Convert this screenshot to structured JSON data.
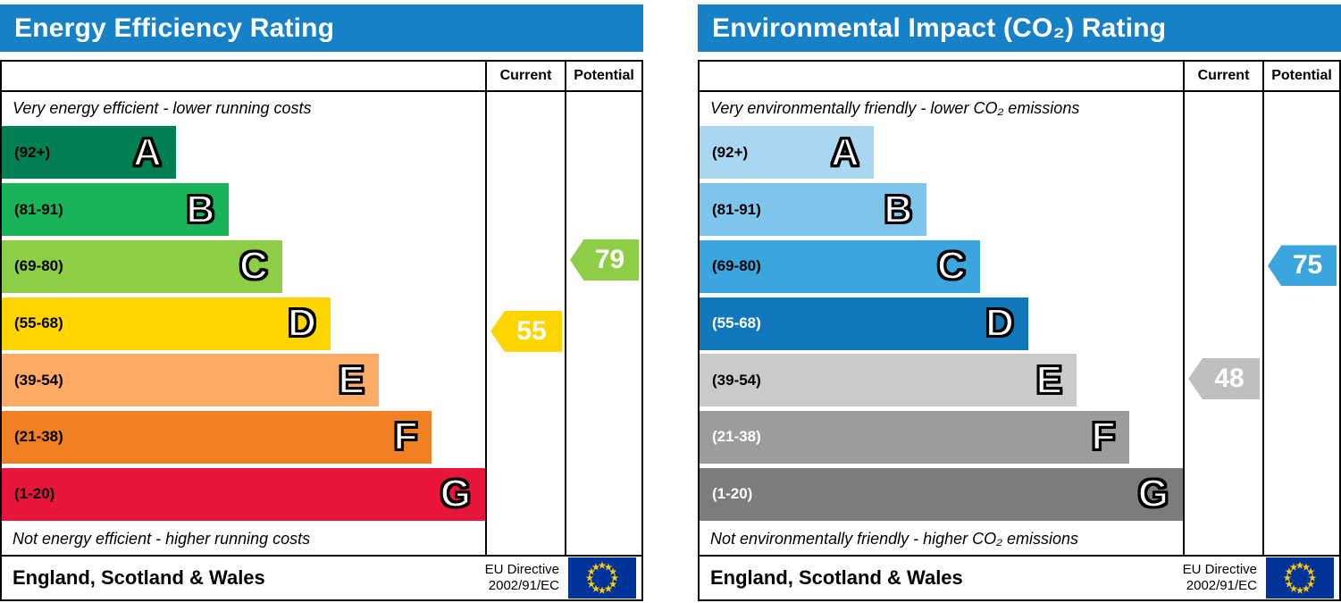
{
  "theme": {
    "header_bg": "#1681c7",
    "border_color": "#000000",
    "flag_bg": "#003399",
    "flag_star": "#ffcc00"
  },
  "chart_data": [
    {
      "type": "bar",
      "title": "Energy Efficiency Rating",
      "columns": {
        "current": "Current",
        "potential": "Potential"
      },
      "top_note": "Very energy efficient - lower running costs",
      "bottom_note": "Not energy efficient - higher running costs",
      "bands": [
        {
          "letter": "A",
          "range": "(92+)",
          "min": 92,
          "max": 100,
          "color": "#008054",
          "width_pct": 36,
          "label_color": "#000000"
        },
        {
          "letter": "B",
          "range": "(81-91)",
          "min": 81,
          "max": 91,
          "color": "#19b459",
          "width_pct": 47,
          "label_color": "#000000"
        },
        {
          "letter": "C",
          "range": "(69-80)",
          "min": 69,
          "max": 80,
          "color": "#8dce46",
          "width_pct": 58,
          "label_color": "#000000"
        },
        {
          "letter": "D",
          "range": "(55-68)",
          "min": 55,
          "max": 68,
          "color": "#ffd500",
          "width_pct": 68,
          "label_color": "#000000"
        },
        {
          "letter": "E",
          "range": "(39-54)",
          "min": 39,
          "max": 54,
          "color": "#fcaa65",
          "width_pct": 78,
          "label_color": "#000000"
        },
        {
          "letter": "F",
          "range": "(21-38)",
          "min": 21,
          "max": 38,
          "color": "#ef8023",
          "width_pct": 89,
          "label_color": "#000000"
        },
        {
          "letter": "G",
          "range": "(1-20)",
          "min": 1,
          "max": 20,
          "color": "#e9153b",
          "width_pct": 100,
          "label_color": "#000000"
        }
      ],
      "current": {
        "value": 55,
        "band": "D",
        "band_index": 3,
        "color": "#ffd500"
      },
      "potential": {
        "value": 79,
        "band": "C",
        "band_index": 2,
        "color": "#8dce46"
      },
      "footer": {
        "region": "England, Scotland & Wales",
        "directive_line1": "EU Directive",
        "directive_line2": "2002/91/EC"
      }
    },
    {
      "type": "bar",
      "title": "Environmental Impact (CO₂) Rating",
      "columns": {
        "current": "Current",
        "potential": "Potential"
      },
      "top_note": "Very environmentally friendly - lower CO₂ emissions",
      "bottom_note": "Not environmentally friendly - higher CO₂ emissions",
      "bands": [
        {
          "letter": "A",
          "range": "(92+)",
          "min": 92,
          "max": 100,
          "color": "#a9d7f2",
          "width_pct": 36,
          "label_color": "#000000"
        },
        {
          "letter": "B",
          "range": "(81-91)",
          "min": 81,
          "max": 91,
          "color": "#7ec5ec",
          "width_pct": 47,
          "label_color": "#000000"
        },
        {
          "letter": "C",
          "range": "(69-80)",
          "min": 69,
          "max": 80,
          "color": "#3ba6de",
          "width_pct": 58,
          "label_color": "#000000"
        },
        {
          "letter": "D",
          "range": "(55-68)",
          "min": 55,
          "max": 68,
          "color": "#1278bc",
          "width_pct": 68,
          "label_color": "#ffffff"
        },
        {
          "letter": "E",
          "range": "(39-54)",
          "min": 39,
          "max": 54,
          "color": "#cacaca",
          "width_pct": 78,
          "label_color": "#000000"
        },
        {
          "letter": "F",
          "range": "(21-38)",
          "min": 21,
          "max": 38,
          "color": "#9c9c9c",
          "width_pct": 89,
          "label_color": "#ffffff"
        },
        {
          "letter": "G",
          "range": "(1-20)",
          "min": 1,
          "max": 20,
          "color": "#7c7c7c",
          "width_pct": 100,
          "label_color": "#ffffff"
        }
      ],
      "current": {
        "value": 48,
        "band": "E",
        "band_index": 4,
        "color": "#bfbfbf"
      },
      "potential": {
        "value": 75,
        "band": "C",
        "band_index": 2,
        "color": "#3ba6de"
      },
      "footer": {
        "region": "England, Scotland & Wales",
        "directive_line1": "EU Directive",
        "directive_line2": "2002/91/EC"
      }
    }
  ]
}
